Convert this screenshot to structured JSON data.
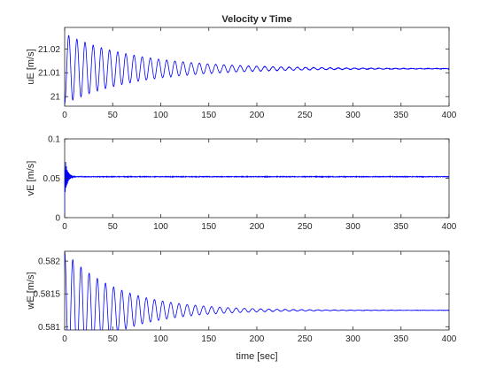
{
  "chart_data": [
    {
      "type": "line",
      "title": "Velocity v Time",
      "xlabel": "",
      "ylabel": "uE [m/s]",
      "xlim": [
        0,
        400
      ],
      "ylim": [
        20.996,
        21.029
      ],
      "xticks": [
        0,
        50,
        100,
        150,
        200,
        250,
        300,
        350,
        400
      ],
      "xtick_labels": [
        "0",
        "50",
        "100",
        "150",
        "200",
        "250",
        "300",
        "350",
        "400"
      ],
      "yticks": [
        21,
        21.01,
        21.02
      ],
      "ytick_labels": [
        "21",
        "21.01",
        "21.02"
      ],
      "grid": false,
      "line_color": "#0000ff",
      "series": [
        {
          "model": "damped_oscillation",
          "steady_value": 21.0117,
          "initial_value": 20.997,
          "first_peak": 21.029,
          "period": 8.5,
          "decay_time": 75,
          "noise": 0.0001,
          "x": [
            0,
            4,
            8.5,
            13,
            17,
            21.5,
            26,
            30,
            34.5,
            39,
            43,
            47.5,
            52,
            60,
            69,
            86,
            100,
            120,
            150,
            200,
            250,
            300,
            350,
            400
          ],
          "values": [
            20.997,
            21.029,
            20.999,
            21.026,
            21.0,
            21.025,
            21.001,
            21.023,
            21.002,
            21.022,
            21.003,
            21.021,
            21.004,
            21.0195,
            21.0055,
            21.018,
            21.007,
            21.0155,
            21.0085,
            21.0135,
            21.0117,
            21.0117,
            21.0117,
            21.0117
          ]
        }
      ]
    },
    {
      "type": "line",
      "title": "",
      "xlabel": "",
      "ylabel": "vE [m/s]",
      "xlim": [
        0,
        400
      ],
      "ylim": [
        0,
        0.1
      ],
      "xticks": [
        0,
        50,
        100,
        150,
        200,
        250,
        300,
        350,
        400
      ],
      "xtick_labels": [
        "0",
        "50",
        "100",
        "150",
        "200",
        "250",
        "300",
        "350",
        "400"
      ],
      "yticks": [
        0,
        0.05,
        0.1
      ],
      "ytick_labels": [
        "0",
        "0.05",
        "0.1"
      ],
      "grid": false,
      "line_color": "#0000ff",
      "series": [
        {
          "model": "step_with_transient",
          "steady_value": 0.052,
          "initial_value": 0,
          "transient_amplitude": 0.028,
          "period": 0.8,
          "decay_time": 2.5,
          "noise": 0.0004,
          "x": [
            0,
            0.4,
            0.8,
            1.2,
            2,
            4,
            10,
            100,
            200,
            300,
            400
          ],
          "values": [
            0,
            0.08,
            0.03,
            0.07,
            0.045,
            0.056,
            0.052,
            0.052,
            0.052,
            0.052,
            0.052
          ]
        }
      ]
    },
    {
      "type": "line",
      "title": "",
      "xlabel": "time [sec]",
      "ylabel": "wE [m/s]",
      "xlim": [
        0,
        400
      ],
      "ylim": [
        0.58095,
        0.58215
      ],
      "xticks": [
        0,
        50,
        100,
        150,
        200,
        250,
        300,
        350,
        400
      ],
      "xtick_labels": [
        "0",
        "50",
        "100",
        "150",
        "200",
        "250",
        "300",
        "350",
        "400"
      ],
      "yticks": [
        0.581,
        0.5815,
        0.582
      ],
      "ytick_labels": [
        "0.581",
        "0.5815",
        "0.582"
      ],
      "grid": false,
      "line_color": "#0000ff",
      "series": [
        {
          "model": "damped_oscillation",
          "steady_value": 0.58125,
          "initial_value": 0.58215,
          "first_peak": 0.5821,
          "period": 8.5,
          "decay_time": 55,
          "noise": 2e-06,
          "x": [
            0,
            4,
            8.5,
            13,
            17,
            21.5,
            26,
            30,
            34.5,
            39,
            43,
            52,
            60,
            69,
            86,
            100,
            150,
            200,
            250,
            300,
            350,
            400
          ],
          "values": [
            0.58215,
            0.5811,
            0.58155,
            0.58098,
            0.58152,
            0.58103,
            0.5815,
            0.58105,
            0.58146,
            0.58108,
            0.58144,
            0.5814,
            0.58113,
            0.58136,
            0.58133,
            0.58118,
            0.58128,
            0.58126,
            0.58125,
            0.58125,
            0.58125,
            0.58125
          ]
        }
      ]
    }
  ]
}
